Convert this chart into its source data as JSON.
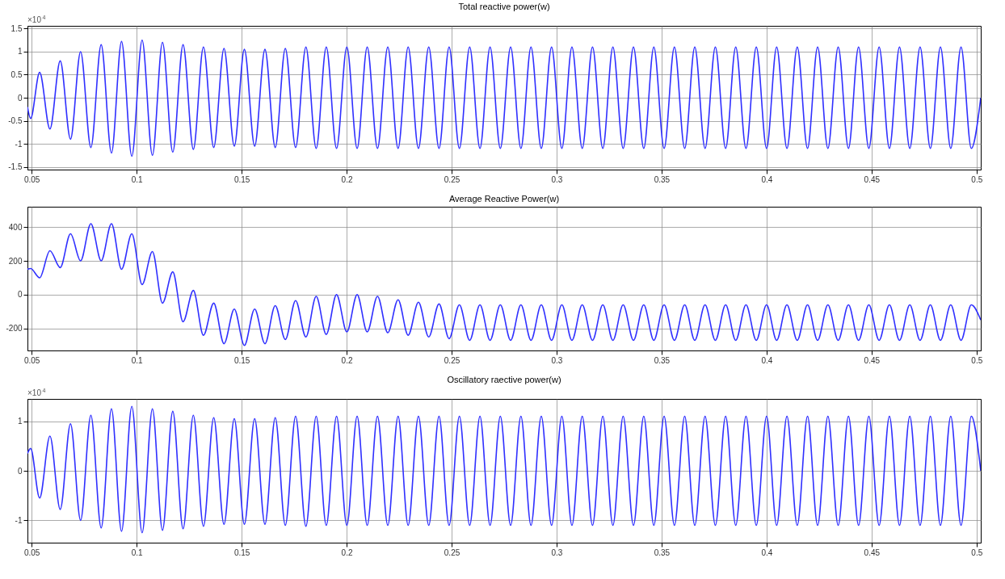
{
  "chart_data": [
    {
      "type": "line",
      "title": "Total reactive power(w)",
      "annotations": [
        "×10$^{4}$"
      ],
      "color": "#3030ff",
      "line_style": "solid",
      "grid": true,
      "xlim": [
        0.048,
        0.502
      ],
      "ylim": [
        -1.56,
        1.56
      ],
      "xticks": [
        0.05,
        0.1,
        0.15,
        0.2,
        0.25,
        0.3,
        0.35,
        0.4,
        0.45,
        0.5
      ],
      "yticks": [
        -1.5,
        -1,
        -0.5,
        0,
        0.5,
        1,
        1.5
      ],
      "x": [
        0.048,
        0.0495,
        0.0538,
        0.0587,
        0.0636,
        0.0685,
        0.0733,
        0.0782,
        0.0831,
        0.088,
        0.0928,
        0.0977,
        0.1026,
        0.1075,
        0.1123,
        0.1172,
        0.1221,
        0.127,
        0.1318,
        0.1367,
        0.1416,
        0.1465,
        0.1513,
        0.1562,
        0.1611,
        0.166,
        0.1708,
        0.1757,
        0.1806,
        0.1855,
        0.1903,
        0.1952,
        0.2001,
        0.205,
        0.2098,
        0.2147,
        0.2196,
        0.2245,
        0.2293,
        0.2342,
        0.2391,
        0.244,
        0.2488,
        0.2537,
        0.2586,
        0.2635,
        0.2683,
        0.2732,
        0.2781,
        0.283,
        0.2878,
        0.2927,
        0.2976,
        0.3025,
        0.3073,
        0.3122,
        0.3171,
        0.322,
        0.3268,
        0.3317,
        0.3366,
        0.3415,
        0.3463,
        0.3512,
        0.3561,
        0.361,
        0.3658,
        0.3707,
        0.3756,
        0.3805,
        0.3853,
        0.3902,
        0.3951,
        0.4,
        0.4048,
        0.4097,
        0.4146,
        0.4195,
        0.4243,
        0.4292,
        0.4341,
        0.439,
        0.4438,
        0.4487,
        0.4536,
        0.4585,
        0.4633,
        0.4682,
        0.4731,
        0.478,
        0.4828,
        0.4877,
        0.4926,
        0.4975,
        0.502
      ],
      "values": [
        -0.2,
        -0.45,
        0.55,
        -0.68,
        0.8,
        -0.9,
        1.0,
        -1.08,
        1.15,
        -1.2,
        1.22,
        -1.27,
        1.25,
        -1.25,
        1.2,
        -1.18,
        1.15,
        -1.12,
        1.1,
        -1.08,
        1.07,
        -1.05,
        1.05,
        -1.05,
        1.05,
        -1.08,
        1.07,
        -1.08,
        1.1,
        -1.1,
        1.1,
        -1.1,
        1.1,
        -1.1,
        1.1,
        -1.1,
        1.1,
        -1.1,
        1.1,
        -1.1,
        1.1,
        -1.1,
        1.1,
        -1.1,
        1.1,
        -1.1,
        1.1,
        -1.1,
        1.1,
        -1.1,
        1.1,
        -1.1,
        1.1,
        -1.1,
        1.1,
        -1.1,
        1.1,
        -1.1,
        1.1,
        -1.1,
        1.1,
        -1.1,
        1.1,
        -1.1,
        1.1,
        -1.1,
        1.1,
        -1.1,
        1.1,
        -1.1,
        1.1,
        -1.1,
        1.1,
        -1.1,
        1.1,
        -1.1,
        1.1,
        -1.1,
        1.1,
        -1.1,
        1.1,
        -1.1,
        1.1,
        -1.1,
        1.1,
        -1.1,
        1.1,
        -1.1,
        1.1,
        -1.1,
        1.1,
        -1.1,
        1.1,
        -1.1,
        0
      ]
    },
    {
      "type": "line",
      "title": "Average Reactive Power(w)",
      "color": "#3030ff",
      "line_style": "solid",
      "grid": true,
      "xlim": [
        0.048,
        0.502
      ],
      "ylim": [
        -330,
        520
      ],
      "xticks": [
        0.05,
        0.1,
        0.15,
        0.2,
        0.25,
        0.3,
        0.35,
        0.4,
        0.45,
        0.5
      ],
      "yticks": [
        -200,
        0,
        200,
        400
      ],
      "x": [
        0.048,
        0.0495,
        0.0538,
        0.0587,
        0.0636,
        0.0685,
        0.0733,
        0.0782,
        0.0831,
        0.088,
        0.0928,
        0.0977,
        0.1026,
        0.1075,
        0.1123,
        0.1172,
        0.1221,
        0.127,
        0.1318,
        0.1367,
        0.1416,
        0.1465,
        0.1513,
        0.1562,
        0.1611,
        0.166,
        0.1708,
        0.1757,
        0.1806,
        0.1855,
        0.1903,
        0.1952,
        0.2001,
        0.205,
        0.2098,
        0.2147,
        0.2196,
        0.2245,
        0.2293,
        0.2342,
        0.2391,
        0.244,
        0.2488,
        0.2537,
        0.2586,
        0.2635,
        0.2683,
        0.2732,
        0.2781,
        0.283,
        0.2878,
        0.2927,
        0.2976,
        0.3025,
        0.3073,
        0.3122,
        0.3171,
        0.322,
        0.3268,
        0.3317,
        0.3366,
        0.3415,
        0.3463,
        0.3512,
        0.3561,
        0.361,
        0.3658,
        0.3707,
        0.3756,
        0.3805,
        0.3853,
        0.3902,
        0.3951,
        0.4,
        0.4048,
        0.4097,
        0.4146,
        0.4195,
        0.4243,
        0.4292,
        0.4341,
        0.439,
        0.4438,
        0.4487,
        0.4536,
        0.4585,
        0.4633,
        0.4682,
        0.4731,
        0.478,
        0.4828,
        0.4877,
        0.4926,
        0.4975,
        0.502
      ],
      "values": [
        150,
        155,
        100,
        260,
        160,
        360,
        200,
        420,
        200,
        420,
        150,
        360,
        60,
        255,
        -50,
        135,
        -160,
        25,
        -240,
        -50,
        -290,
        -85,
        -300,
        -85,
        -290,
        -65,
        -265,
        -35,
        -250,
        -10,
        -235,
        0,
        -220,
        0,
        -220,
        -10,
        -225,
        -30,
        -240,
        -45,
        -250,
        -55,
        -260,
        -60,
        -270,
        -60,
        -270,
        -60,
        -270,
        -60,
        -270,
        -60,
        -270,
        -60,
        -270,
        -60,
        -270,
        -60,
        -270,
        -60,
        -270,
        -60,
        -270,
        -60,
        -270,
        -60,
        -270,
        -60,
        -270,
        -60,
        -270,
        -60,
        -270,
        -60,
        -270,
        -60,
        -270,
        -60,
        -270,
        -60,
        -270,
        -60,
        -270,
        -60,
        -270,
        -60,
        -270,
        -60,
        -270,
        -60,
        -270,
        -60,
        -270,
        -60,
        -150
      ]
    },
    {
      "type": "line",
      "title": "Oscillatory raective power(w)",
      "annotations": [
        "×10$^{4}$"
      ],
      "color": "#3030ff",
      "line_style": "solid",
      "grid": true,
      "xlim": [
        0.048,
        0.502
      ],
      "ylim": [
        -1.45,
        1.45
      ],
      "xticks": [
        0.05,
        0.1,
        0.15,
        0.2,
        0.25,
        0.3,
        0.35,
        0.4,
        0.45,
        0.5
      ],
      "yticks": [
        -1,
        0,
        1
      ],
      "x": [
        0.048,
        0.0495,
        0.0538,
        0.0587,
        0.0636,
        0.0685,
        0.0733,
        0.0782,
        0.0831,
        0.088,
        0.0928,
        0.0977,
        0.1026,
        0.1075,
        0.1123,
        0.1172,
        0.1221,
        0.127,
        0.1318,
        0.1367,
        0.1416,
        0.1465,
        0.1513,
        0.1562,
        0.1611,
        0.166,
        0.1708,
        0.1757,
        0.1806,
        0.1855,
        0.1903,
        0.1952,
        0.2001,
        0.205,
        0.2098,
        0.2147,
        0.2196,
        0.2245,
        0.2293,
        0.2342,
        0.2391,
        0.244,
        0.2488,
        0.2537,
        0.2586,
        0.2635,
        0.2683,
        0.2732,
        0.2781,
        0.283,
        0.2878,
        0.2927,
        0.2976,
        0.3025,
        0.3073,
        0.3122,
        0.3171,
        0.322,
        0.3268,
        0.3317,
        0.3366,
        0.3415,
        0.3463,
        0.3512,
        0.3561,
        0.361,
        0.3658,
        0.3707,
        0.3756,
        0.3805,
        0.3853,
        0.3902,
        0.3951,
        0.4,
        0.4048,
        0.4097,
        0.4146,
        0.4195,
        0.4243,
        0.4292,
        0.4341,
        0.439,
        0.4438,
        0.4487,
        0.4536,
        0.4585,
        0.4633,
        0.4682,
        0.4731,
        0.478,
        0.4828,
        0.4877,
        0.4926,
        0.4975,
        0.502
      ],
      "values": [
        0.35,
        0.45,
        -0.55,
        0.7,
        -0.78,
        0.95,
        -1.0,
        1.12,
        -1.15,
        1.25,
        -1.22,
        1.3,
        -1.25,
        1.25,
        -1.2,
        1.2,
        -1.17,
        1.12,
        -1.12,
        1.07,
        -1.08,
        1.05,
        -1.08,
        1.05,
        -1.08,
        1.07,
        -1.1,
        1.1,
        -1.12,
        1.1,
        -1.1,
        1.1,
        -1.1,
        1.1,
        -1.1,
        1.1,
        -1.1,
        1.1,
        -1.1,
        1.1,
        -1.1,
        1.1,
        -1.1,
        1.1,
        -1.1,
        1.1,
        -1.1,
        1.1,
        -1.1,
        1.1,
        -1.1,
        1.1,
        -1.1,
        1.1,
        -1.1,
        1.1,
        -1.1,
        1.1,
        -1.1,
        1.1,
        -1.1,
        1.1,
        -1.1,
        1.1,
        -1.1,
        1.1,
        -1.1,
        1.1,
        -1.1,
        1.1,
        -1.1,
        1.1,
        -1.1,
        1.1,
        -1.1,
        1.1,
        -1.1,
        1.1,
        -1.1,
        1.1,
        -1.1,
        1.1,
        -1.1,
        1.1,
        -1.1,
        1.1,
        -1.1,
        1.1,
        -1.1,
        1.1,
        -1.1,
        1.1,
        -1.1,
        1.1,
        0
      ]
    }
  ]
}
